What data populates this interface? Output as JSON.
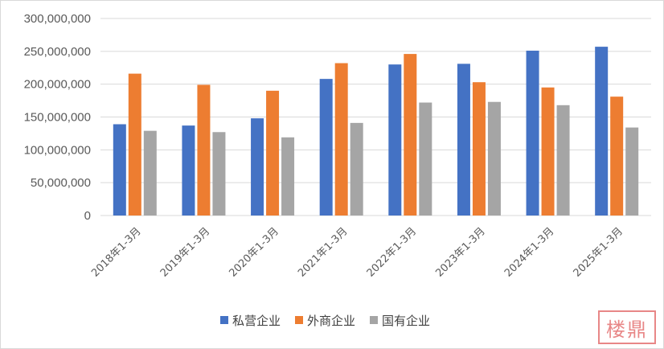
{
  "chart_data": {
    "type": "bar",
    "categories": [
      "2018年1-3月",
      "2019年1-3月",
      "2020年1-3月",
      "2021年1-3月",
      "2022年1-3月",
      "2023年1-3月",
      "2024年1-3月",
      "2025年1-3月"
    ],
    "series": [
      {
        "name": "私营企业",
        "color": "#4472c4",
        "values": [
          139000000,
          137000000,
          148000000,
          208000000,
          230000000,
          231000000,
          251000000,
          257000000
        ]
      },
      {
        "name": "外商企业",
        "color": "#ed7d31",
        "values": [
          216000000,
          199000000,
          190000000,
          232000000,
          246000000,
          203000000,
          195000000,
          181000000
        ]
      },
      {
        "name": "国有企业",
        "color": "#a5a5a5",
        "values": [
          129000000,
          127000000,
          119000000,
          141000000,
          172000000,
          173000000,
          168000000,
          134000000
        ]
      }
    ],
    "ylim": [
      0,
      300000000
    ],
    "yticks": [
      "0",
      "50,000,000",
      "100,000,000",
      "150,000,000",
      "200,000,000",
      "250,000,000",
      "300,000,000"
    ],
    "grid": true,
    "legend": "bottom",
    "title": "",
    "xlabel": "",
    "ylabel": ""
  },
  "watermark": {
    "text": "楼鼎"
  }
}
